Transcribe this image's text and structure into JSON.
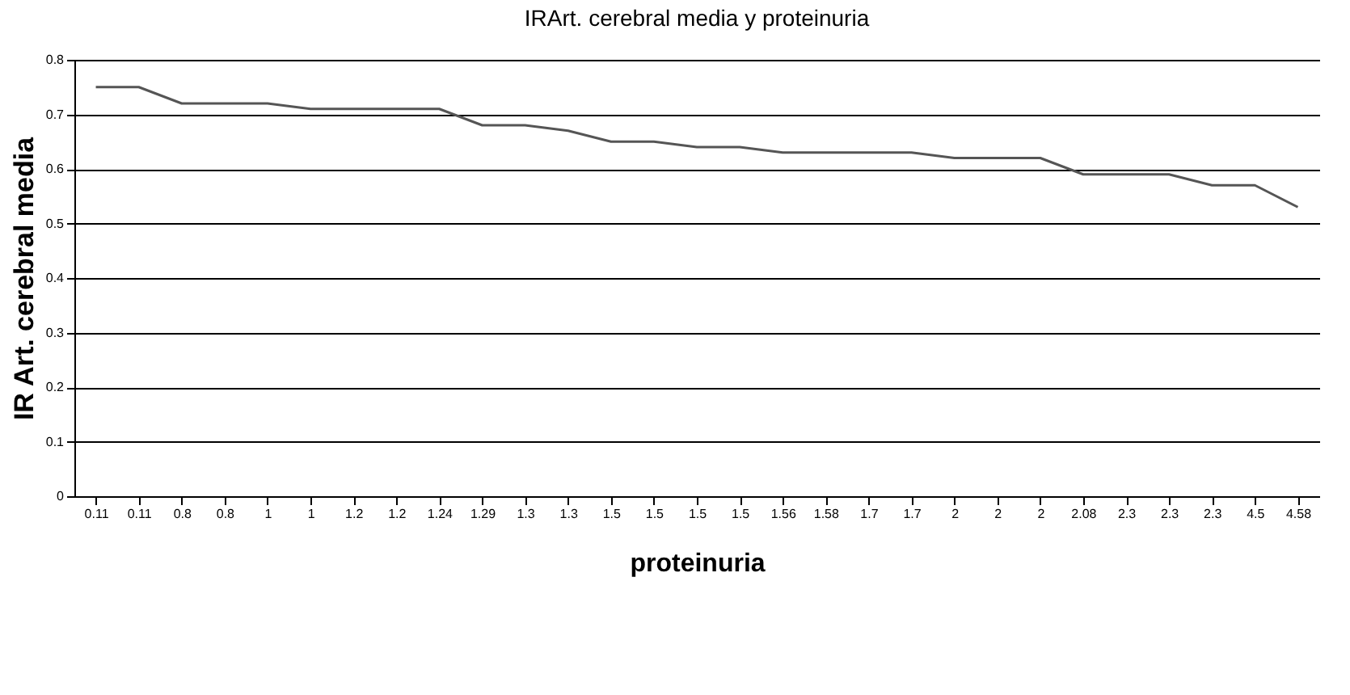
{
  "chart_data": {
    "type": "line",
    "title": "IRArt. cerebral media y proteinuria",
    "xlabel": "proteinuria",
    "ylabel": "IR Art. cerebral media",
    "categories": [
      "0.11",
      "0.11",
      "0.8",
      "0.8",
      "1",
      "1",
      "1.2",
      "1.2",
      "1.24",
      "1.29",
      "1.3",
      "1.3",
      "1.5",
      "1.5",
      "1.5",
      "1.5",
      "1.56",
      "1.58",
      "1.7",
      "1.7",
      "2",
      "2",
      "2",
      "2.08",
      "2.3",
      "2.3",
      "2.3",
      "4.5",
      "4.58"
    ],
    "series": [
      {
        "color": "#555555",
        "values": [
          0.75,
          0.75,
          0.72,
          0.72,
          0.72,
          0.71,
          0.71,
          0.71,
          0.71,
          0.68,
          0.68,
          0.67,
          0.65,
          0.65,
          0.64,
          0.64,
          0.63,
          0.63,
          0.63,
          0.63,
          0.62,
          0.62,
          0.62,
          0.59,
          0.59,
          0.59,
          0.57,
          0.57,
          0.53
        ]
      }
    ],
    "ylim": [
      0,
      0.8
    ],
    "yticks": [
      0,
      0.1,
      0.2,
      0.3,
      0.4,
      0.5,
      0.6,
      0.7,
      0.8
    ],
    "grid": "y",
    "marker": "none",
    "line_style": "solid"
  }
}
